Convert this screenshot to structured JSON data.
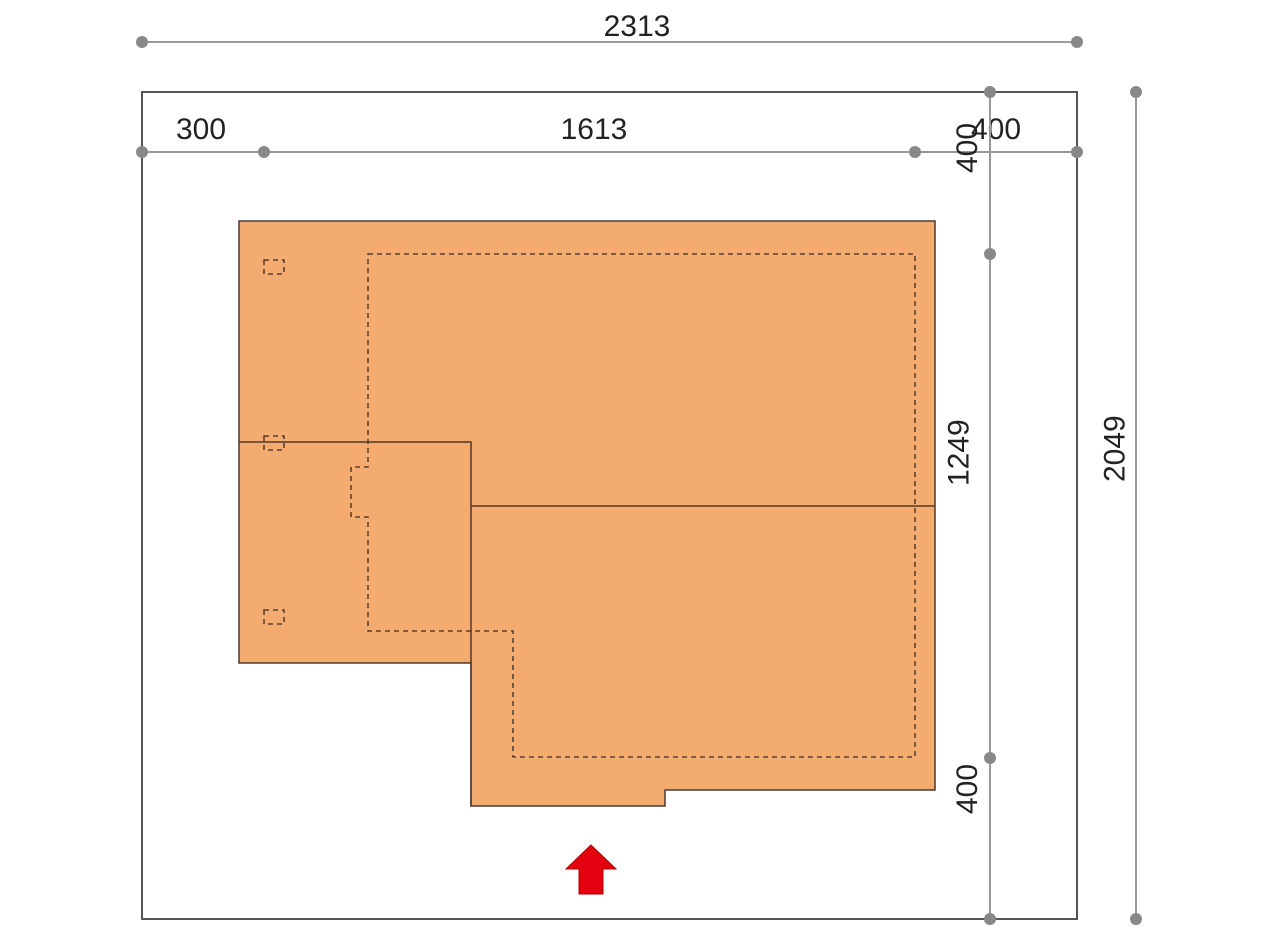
{
  "colors": {
    "building_fill": "#f3ab6f",
    "building_stroke": "#4a3a30",
    "plot_stroke": "#555555",
    "dimension_line": "#999999",
    "dimension_dot": "#888888",
    "entrance_arrow": "#e3000f"
  },
  "dimensions": {
    "plot_width": "2313",
    "left_setback": "300",
    "building_width": "1613",
    "right_setback": "400",
    "top_setback": "400",
    "building_depth": "1249",
    "bottom_setback": "400",
    "plot_depth": "2049"
  },
  "icons": {
    "entrance": "up-arrow-icon"
  }
}
